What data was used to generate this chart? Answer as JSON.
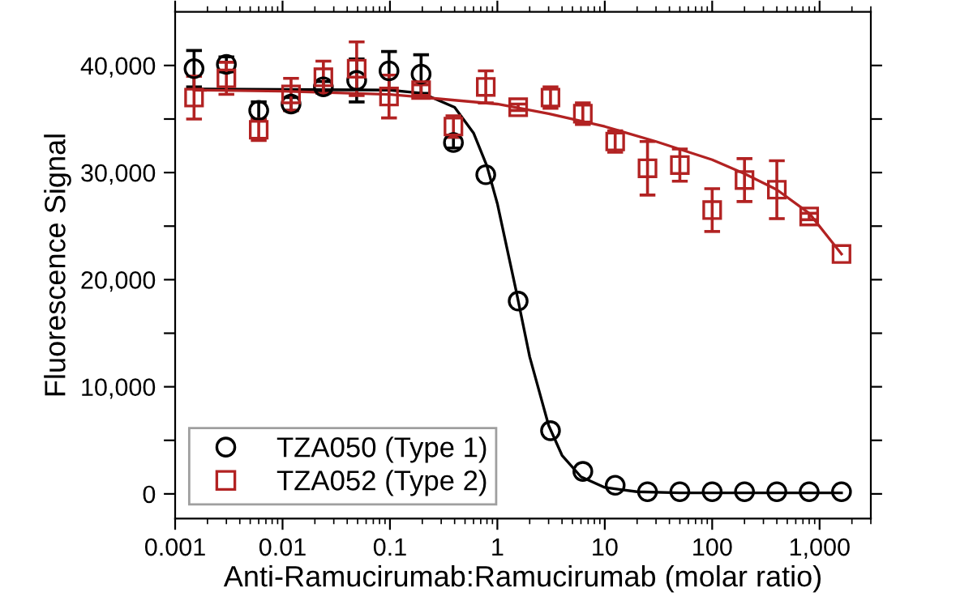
{
  "chart_data": {
    "type": "scatter",
    "xlabel": "Anti-Ramucirumab:Ramucirumab (molar ratio)",
    "ylabel": "Fluorescence Signal",
    "log": "x",
    "xlim": [
      0.001,
      3000
    ],
    "xticks": [
      {
        "value": 0.001,
        "label": "0.001"
      },
      {
        "value": 0.01,
        "label": "0.01"
      },
      {
        "value": 0.1,
        "label": "0.1"
      },
      {
        "value": 1,
        "label": "1"
      },
      {
        "value": 10,
        "label": "10"
      },
      {
        "value": 100,
        "label": "100"
      },
      {
        "value": 1000,
        "label": "1,000"
      }
    ],
    "ylim": [
      -2300,
      45000
    ],
    "yticks": [
      {
        "value": 0,
        "label": "0"
      },
      {
        "value": 5000,
        "label": null
      },
      {
        "value": 10000,
        "label": "10,000"
      },
      {
        "value": 15000,
        "label": null
      },
      {
        "value": 20000,
        "label": "20,000"
      },
      {
        "value": 25000,
        "label": null
      },
      {
        "value": 30000,
        "label": "30,000"
      },
      {
        "value": 35000,
        "label": null
      },
      {
        "value": 40000,
        "label": "40,000"
      }
    ],
    "grid": false,
    "legend": "bottom left",
    "x": [
      0.0015,
      0.003,
      0.006,
      0.012,
      0.024,
      0.049,
      0.098,
      0.195,
      0.39,
      0.78,
      1.5625,
      3.125,
      6.25,
      12.5,
      25,
      50,
      100,
      200,
      400,
      800,
      1600
    ],
    "series": [
      {
        "name": "TZA050 (Type 1)",
        "marker": "circle",
        "color": "#000000",
        "values": [
          39700,
          40100,
          35800,
          36400,
          38000,
          38600,
          39500,
          39200,
          32800,
          29800,
          18000,
          5900,
          2100,
          800,
          200,
          200,
          200,
          200,
          200,
          200,
          200
        ],
        "errors": [
          1700,
          700,
          800,
          600,
          500,
          2000,
          1800,
          1800,
          500,
          null,
          null,
          null,
          null,
          null,
          null,
          null,
          null,
          null,
          null,
          null,
          null
        ]
      },
      {
        "name": "TZA052 (Type 2)",
        "marker": "square",
        "color": "#b22222",
        "values": [
          37000,
          38800,
          34000,
          37300,
          38900,
          39700,
          37100,
          37700,
          34300,
          38000,
          36100,
          37000,
          35500,
          32900,
          30400,
          30700,
          26500,
          29300,
          28400,
          25900,
          22400
        ],
        "errors": [
          2000,
          1500,
          1000,
          1500,
          1500,
          2500,
          2000,
          500,
          1000,
          1500,
          300,
          1000,
          1000,
          1000,
          2500,
          1500,
          2000,
          2000,
          2700,
          300,
          null
        ]
      },
      {
        "type": "line",
        "color": "#000000",
        "x": [
          0.0015,
          0.1,
          0.2,
          0.4,
          0.6,
          0.8,
          1,
          1.5,
          2,
          3,
          4,
          6,
          10,
          20,
          50,
          1600
        ],
        "values": [
          37800,
          37700,
          37400,
          36100,
          33700,
          30600,
          27100,
          18900,
          12800,
          6400,
          3600,
          1600,
          600,
          200,
          100,
          100
        ]
      },
      {
        "type": "line",
        "color": "#b22222",
        "x": [
          0.0015,
          0.01,
          0.1,
          1,
          3,
          10,
          30,
          100,
          200,
          400,
          800,
          1600
        ],
        "values": [
          37700,
          37600,
          37300,
          36400,
          35500,
          34300,
          32900,
          31200,
          29900,
          28400,
          26200,
          22400
        ]
      }
    ]
  }
}
